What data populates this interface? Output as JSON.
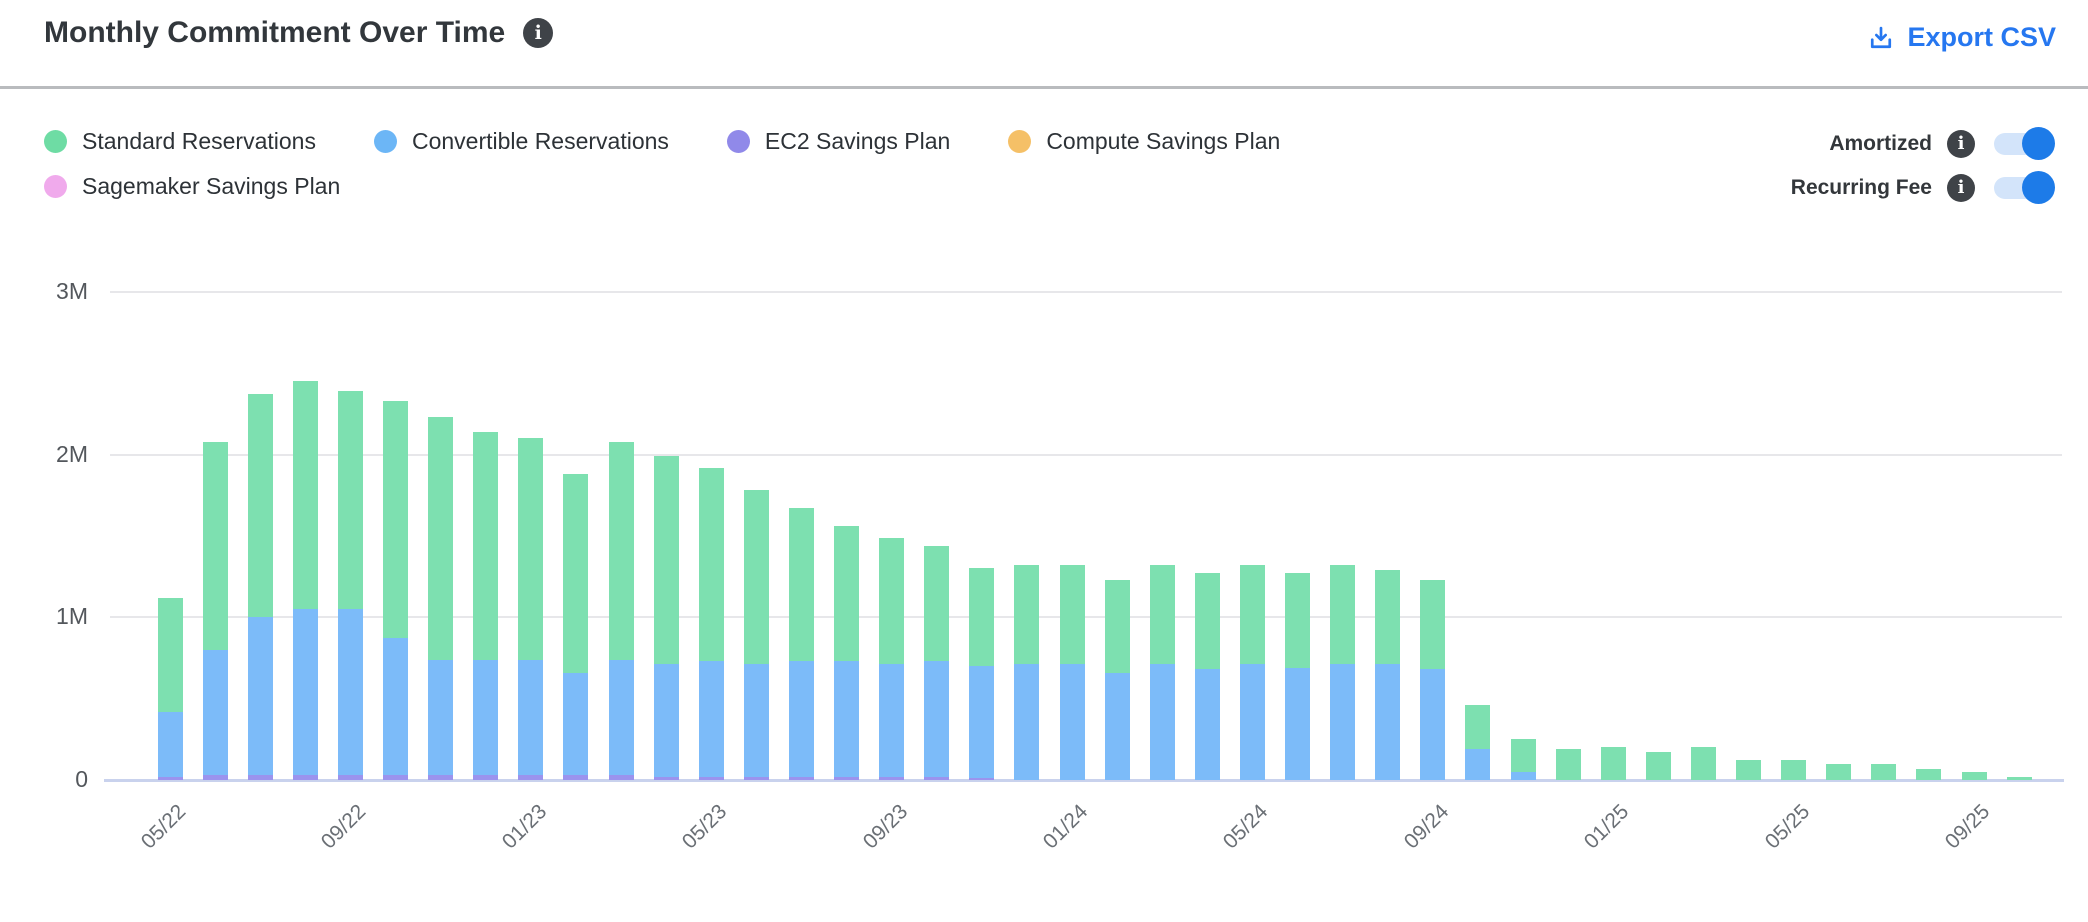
{
  "header": {
    "title": "Monthly Commitment Over Time",
    "export_label": "Export CSV"
  },
  "toggles": [
    {
      "label": "Amortized",
      "state": "on"
    },
    {
      "label": "Recurring Fee",
      "state": "on"
    }
  ],
  "toggle_colors": {
    "track": "#d3e4fa",
    "knob": "#1d7be8"
  },
  "accent_colors": {
    "export_link": "#2677f0",
    "info_icon_bg": "#3f4348"
  },
  "chart_data": {
    "type": "bar",
    "stacked": true,
    "title": "Monthly Commitment Over Time",
    "unit": "M",
    "ylim": [
      0,
      3
    ],
    "y_ticks": [
      "0",
      "1M",
      "2M",
      "3M"
    ],
    "x_tick_every": 4,
    "grid": "horizontal",
    "legend_position": "top-left",
    "stack_order_bottom_to_top": [
      "EC2 Savings Plan",
      "Convertible Reservations",
      "Standard Reservations"
    ],
    "categories": [
      "05/22",
      "06/22",
      "07/22",
      "08/22",
      "09/22",
      "10/22",
      "11/22",
      "12/22",
      "01/23",
      "02/23",
      "03/23",
      "04/23",
      "05/23",
      "06/23",
      "07/23",
      "08/23",
      "09/23",
      "10/23",
      "11/23",
      "12/23",
      "01/24",
      "02/24",
      "03/24",
      "04/24",
      "05/24",
      "06/24",
      "07/24",
      "08/24",
      "09/24",
      "10/24",
      "11/24",
      "12/24",
      "01/25",
      "02/25",
      "03/25",
      "04/25",
      "05/25",
      "06/25",
      "07/25",
      "08/25",
      "09/25",
      "10/25"
    ],
    "x_tick_labels_shown": [
      "05/22",
      "09/22",
      "01/23",
      "05/23",
      "09/23",
      "01/24",
      "05/24",
      "09/24",
      "01/25",
      "05/25",
      "09/25"
    ],
    "series": [
      {
        "name": "Standard Reservations",
        "dot_color": "#6edca4",
        "bar_color": "#7de0b0",
        "values": [
          0.7,
          1.28,
          1.37,
          1.4,
          1.34,
          1.46,
          1.49,
          1.4,
          1.36,
          1.22,
          1.34,
          1.28,
          1.19,
          1.07,
          0.94,
          0.83,
          0.78,
          0.71,
          0.6,
          0.61,
          0.61,
          0.57,
          0.61,
          0.59,
          0.61,
          0.58,
          0.61,
          0.58,
          0.55,
          0.27,
          0.2,
          0.19,
          0.2,
          0.17,
          0.2,
          0.12,
          0.12,
          0.1,
          0.1,
          0.07,
          0.05,
          0.02
        ]
      },
      {
        "name": "Convertible Reservations",
        "dot_color": "#6cb6f6",
        "bar_color": "#7cbbf9",
        "values": [
          0.4,
          0.77,
          0.97,
          1.02,
          1.02,
          0.84,
          0.71,
          0.71,
          0.71,
          0.63,
          0.71,
          0.69,
          0.71,
          0.69,
          0.71,
          0.71,
          0.69,
          0.71,
          0.69,
          0.71,
          0.71,
          0.66,
          0.71,
          0.68,
          0.71,
          0.69,
          0.71,
          0.71,
          0.68,
          0.19,
          0.05,
          0,
          0,
          0,
          0,
          0,
          0,
          0,
          0,
          0,
          0,
          0
        ]
      },
      {
        "name": "EC2 Savings Plan",
        "dot_color": "#9089e9",
        "bar_color": "#9b93ee",
        "values": [
          0.02,
          0.03,
          0.03,
          0.03,
          0.03,
          0.03,
          0.03,
          0.03,
          0.03,
          0.03,
          0.03,
          0.02,
          0.02,
          0.02,
          0.02,
          0.02,
          0.02,
          0.02,
          0.01,
          0,
          0,
          0,
          0,
          0,
          0,
          0,
          0,
          0,
          0,
          0,
          0,
          0,
          0,
          0,
          0,
          0,
          0,
          0,
          0,
          0,
          0,
          0
        ]
      },
      {
        "name": "Compute Savings Plan",
        "dot_color": "#f5c067",
        "bar_color": "#f5c067",
        "values": [
          0,
          0,
          0,
          0,
          0,
          0,
          0,
          0,
          0,
          0,
          0,
          0,
          0,
          0,
          0,
          0,
          0,
          0,
          0,
          0,
          0,
          0,
          0,
          0,
          0,
          0,
          0,
          0,
          0,
          0,
          0,
          0,
          0,
          0,
          0,
          0,
          0,
          0,
          0,
          0,
          0,
          0
        ]
      },
      {
        "name": "Sagemaker Savings Plan",
        "dot_color": "#f0aaec",
        "bar_color": "#f0aaec",
        "values": [
          0,
          0,
          0,
          0,
          0,
          0,
          0,
          0,
          0,
          0,
          0,
          0,
          0,
          0,
          0,
          0,
          0,
          0,
          0,
          0,
          0,
          0,
          0,
          0,
          0,
          0,
          0,
          0,
          0,
          0,
          0,
          0,
          0,
          0,
          0,
          0,
          0,
          0,
          0,
          0,
          0,
          0
        ]
      }
    ]
  }
}
